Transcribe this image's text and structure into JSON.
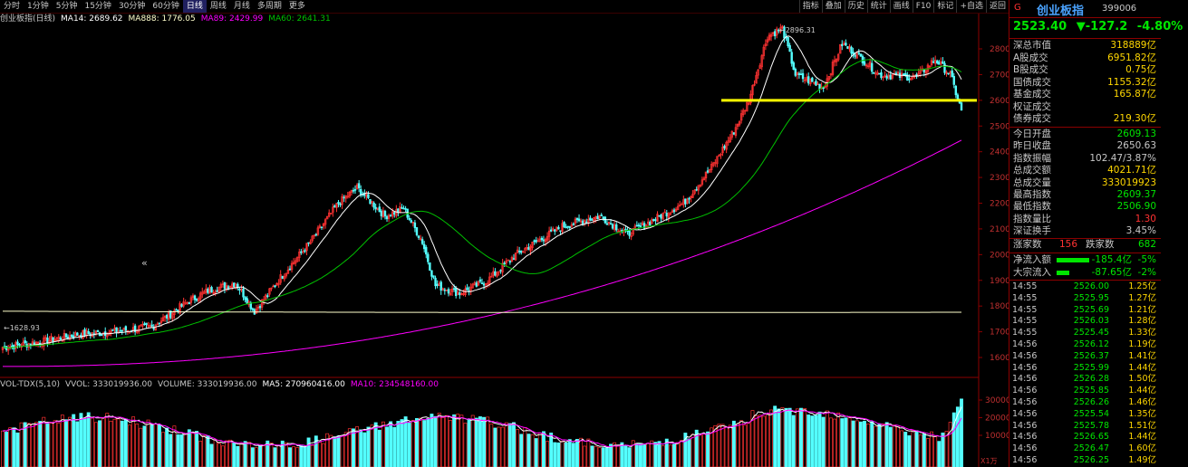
{
  "toolbar": {
    "periods": [
      "分时",
      "1分钟",
      "5分钟",
      "15分钟",
      "30分钟",
      "60分钟",
      "日线",
      "周线",
      "月线",
      "多周期",
      "更多"
    ],
    "active_period": "日线",
    "tools": [
      "指标",
      "叠加",
      "历史",
      "统计",
      "画线",
      "F10",
      "标记",
      "+自选",
      "返回"
    ]
  },
  "indicators": {
    "main_title": "创业板指(日线)",
    "ma14": "MA14: 2689.62",
    "ma888": "MA888: 1776.05",
    "ma89": "MA89: 2429.99",
    "ma60": "MA60: 2641.31",
    "vol_title": "VOL-TDX(5,10)",
    "vvol": "VVOL: 333019936.00",
    "volume": "VOLUME: 333019936.00",
    "ma5": "MA5: 270960416.00",
    "ma10": "MA10: 234548160.00"
  },
  "colors": {
    "up": "#ff3232",
    "down": "#54ffff",
    "ma14": "#ffffff",
    "ma60": "#00c000",
    "ma89": "#ff00ff",
    "ma888": "#ffffcc",
    "hline": "#ffff00"
  },
  "chart_data": {
    "type": "candlestick",
    "y_axis_ticks": [
      1600,
      1700,
      1800,
      1900,
      2000,
      2100,
      2200,
      2300,
      2400,
      2500,
      2600,
      2700,
      2800
    ],
    "ylim": [
      1540,
      2900
    ],
    "vol_axis_ticks": [
      10000,
      20000,
      30000
    ],
    "vol_unit_label": "X1万",
    "annotations": {
      "high_label": "2896.31",
      "low_label": "1628.93",
      "support_line": 2600
    },
    "markers": {
      "left_arrow": "«"
    }
  },
  "quote": {
    "g_mark": "G",
    "name": "创业板指",
    "code": "399006",
    "price": "2523.40",
    "change": "▼-127.2",
    "pct": "-4.80%"
  },
  "stats": [
    {
      "label": "深总市值",
      "value": "318889亿",
      "color": "#ffd700"
    },
    {
      "label": "A股成交",
      "value": "6951.82亿",
      "color": "#ffd700"
    },
    {
      "label": "B股成交",
      "value": "0.75亿",
      "color": "#ffd700"
    },
    {
      "label": "国债成交",
      "value": "1155.32亿",
      "color": "#ffd700"
    },
    {
      "label": "基金成交",
      "value": "165.87亿",
      "color": "#ffd700"
    },
    {
      "label": "权证成交",
      "value": "",
      "color": "#ffd700"
    },
    {
      "label": "债券成交",
      "value": "219.30亿",
      "color": "#ffd700"
    }
  ],
  "stats2": [
    {
      "label": "今日开盘",
      "value": "2609.13",
      "color": "#00e600"
    },
    {
      "label": "昨日收盘",
      "value": "2650.63",
      "color": "#c8c8c8"
    },
    {
      "label": "指数振幅",
      "value": "102.47/3.87%",
      "color": "#c8c8c8"
    },
    {
      "label": "总成交额",
      "value": "4021.71亿",
      "color": "#ffd700"
    },
    {
      "label": "总成交量",
      "value": "333019923",
      "color": "#ffd700"
    },
    {
      "label": "最高指数",
      "value": "2609.37",
      "color": "#00e600"
    },
    {
      "label": "最低指数",
      "value": "2506.90",
      "color": "#00e600"
    },
    {
      "label": "指数量比",
      "value": "1.30",
      "color": "#ff3232"
    },
    {
      "label": "深证换手",
      "value": "3.45%",
      "color": "#c8c8c8"
    }
  ],
  "breadth": {
    "up_label": "涨家数",
    "up_value": "156",
    "down_label": "跌家数",
    "down_value": "682"
  },
  "flows": [
    {
      "label": "净流入额",
      "value": "-185.4亿",
      "pct": "-5%",
      "fill": 0.5
    },
    {
      "label": "大宗流入",
      "value": "-87.65亿",
      "pct": "-2%",
      "fill": 0.2
    }
  ],
  "ticks": [
    {
      "time": "14:55",
      "price": "2526.00",
      "vol": "1.25亿"
    },
    {
      "time": "14:55",
      "price": "2525.95",
      "vol": "1.27亿"
    },
    {
      "time": "14:55",
      "price": "2525.69",
      "vol": "1.21亿"
    },
    {
      "time": "14:55",
      "price": "2526.03",
      "vol": "1.28亿"
    },
    {
      "time": "14:55",
      "price": "2525.45",
      "vol": "1.33亿"
    },
    {
      "time": "14:56",
      "price": "2526.12",
      "vol": "1.19亿"
    },
    {
      "time": "14:56",
      "price": "2526.37",
      "vol": "1.41亿"
    },
    {
      "time": "14:56",
      "price": "2525.99",
      "vol": "1.44亿"
    },
    {
      "time": "14:56",
      "price": "2526.28",
      "vol": "1.50亿"
    },
    {
      "time": "14:56",
      "price": "2525.85",
      "vol": "1.44亿"
    },
    {
      "time": "14:56",
      "price": "2526.26",
      "vol": "1.46亿"
    },
    {
      "time": "14:56",
      "price": "2525.54",
      "vol": "1.35亿"
    },
    {
      "time": "14:56",
      "price": "2525.78",
      "vol": "1.51亿"
    },
    {
      "time": "14:56",
      "price": "2526.65",
      "vol": "1.44亿"
    },
    {
      "time": "14:56",
      "price": "2526.47",
      "vol": "1.60亿"
    },
    {
      "time": "14:56",
      "price": "2526.25",
      "vol": "1.49亿"
    }
  ]
}
